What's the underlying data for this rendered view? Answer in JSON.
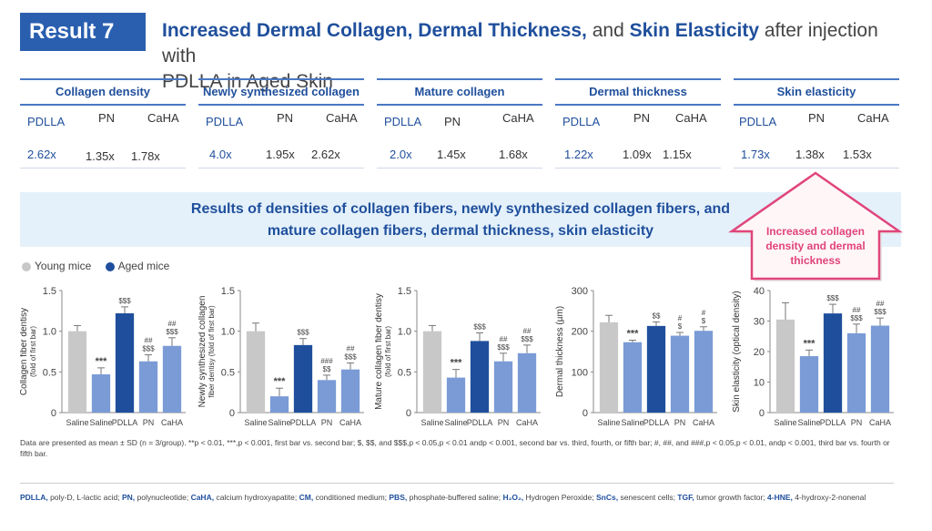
{
  "header": {
    "badge": "Result 7",
    "title_b1": "Increased Dermal Collagen,",
    "title_b2": "Dermal Thickness,",
    "title_t1": " and ",
    "title_b3": "Skin Elasticity",
    "title_t2": " after injection with",
    "title_line2": "PDLLA in Aged Skin"
  },
  "metrics": [
    {
      "title": "Collagen density",
      "labels": [
        "PDLLA",
        "PN",
        "CaHA"
      ],
      "values": [
        "2.62x",
        "1.35x",
        "1.78x"
      ]
    },
    {
      "title": "Newly synthesized collagen",
      "labels": [
        "PDLLA",
        "PN",
        "CaHA"
      ],
      "values": [
        "4.0x",
        "1.95x",
        "2.62x"
      ]
    },
    {
      "title": "Mature collagen",
      "labels": [
        "PDLLA",
        "PN",
        "CaHA"
      ],
      "values": [
        "2.0x",
        "1.45x",
        "1.68x"
      ]
    },
    {
      "title": "Dermal thickness",
      "labels": [
        "PDLLA",
        "PN",
        "CaHA"
      ],
      "values": [
        "1.22x",
        "1.09x",
        "1.15x"
      ]
    },
    {
      "title": "Skin elasticity",
      "labels": [
        "PDLLA",
        "PN",
        "CaHA"
      ],
      "values": [
        "1.73x",
        "1.38x",
        "1.53x"
      ]
    }
  ],
  "banner": {
    "line1": "Results of densities of collagen fibers, newly synthesized collagen fibers, and",
    "line2": "mature collagen fibers, dermal thickness, skin elasticity"
  },
  "callout": {
    "text_lines": [
      "Increased collagen",
      "density and dermal",
      "thickness"
    ]
  },
  "legend": {
    "young": "Young mice",
    "aged": "Aged mice"
  },
  "colors": {
    "young": "#c8c8c8",
    "aged": "#7a9bd6",
    "pdlla": "#1f4f9c",
    "accent": "#e0457b"
  },
  "chart_data": [
    {
      "type": "bar",
      "ylabel_lines": [
        "Collagen fiber dentisy",
        "(fold of first bar)"
      ],
      "categories": [
        "Saline",
        "Saline",
        "PDLLA",
        "PN",
        "CaHA"
      ],
      "values": [
        1.0,
        0.47,
        1.22,
        0.63,
        0.82
      ],
      "errors": [
        0.07,
        0.08,
        0.08,
        0.08,
        0.1
      ],
      "annotations": [
        "",
        "***",
        "$$$",
        "##\n$$$",
        "##\n$$$"
      ],
      "yticks": [
        "0",
        "0.5",
        "1.0",
        "1.5"
      ],
      "ylim": [
        0,
        1.5
      ]
    },
    {
      "type": "bar",
      "ylabel_lines": [
        "Newly synthesized collagen",
        "fiber dentisy (fold of first bar)"
      ],
      "categories": [
        "Saline",
        "Saline",
        "PDLLA",
        "PN",
        "CaHA"
      ],
      "values": [
        1.0,
        0.2,
        0.83,
        0.4,
        0.53
      ],
      "errors": [
        0.1,
        0.1,
        0.08,
        0.06,
        0.08
      ],
      "annotations": [
        "",
        "***",
        "$$$",
        "###\n$$",
        "##\n$$$"
      ],
      "yticks": [
        "0",
        "0.5",
        "1.0",
        "1.5"
      ],
      "ylim": [
        0,
        1.5
      ]
    },
    {
      "type": "bar",
      "ylabel_lines": [
        "Mature collagen fiber dentisy",
        "(fold of first bar)"
      ],
      "categories": [
        "Saline",
        "Saline",
        "PDLLA",
        "PN",
        "CaHA"
      ],
      "values": [
        1.0,
        0.43,
        0.88,
        0.63,
        0.73
      ],
      "errors": [
        0.07,
        0.1,
        0.1,
        0.1,
        0.1
      ],
      "annotations": [
        "",
        "***",
        "$$$",
        "##\n$$$",
        "##\n$$$"
      ],
      "yticks": [
        "0",
        "0.5",
        "1.0",
        "1.5"
      ],
      "ylim": [
        0,
        1.5
      ]
    },
    {
      "type": "bar",
      "ylabel_lines": [
        "Dermal thickness (µm)"
      ],
      "categories": [
        "Saline",
        "Saline",
        "PDLLA",
        "PN",
        "CaHA"
      ],
      "values": [
        222,
        173,
        213,
        189,
        201
      ],
      "errors": [
        17,
        5,
        10,
        8,
        10
      ],
      "annotations": [
        "",
        "***",
        "$$",
        "#\n$",
        "#\n$"
      ],
      "yticks": [
        "0",
        "100",
        "200",
        "300"
      ],
      "ylim": [
        0,
        300
      ]
    },
    {
      "type": "bar",
      "ylabel_lines": [
        "Skin elasticity (optical density)"
      ],
      "categories": [
        "Saline",
        "Saline",
        "PDLLA",
        "PN",
        "CaHA"
      ],
      "values": [
        30.5,
        18.5,
        32.5,
        26.0,
        28.5
      ],
      "errors": [
        5.5,
        2,
        3,
        3,
        2.5
      ],
      "annotations": [
        "",
        "***",
        "$$$",
        "##\n$$$",
        "##\n$$$"
      ],
      "yticks": [
        "0",
        "10",
        "20",
        "30",
        "40"
      ],
      "ylim": [
        0,
        40
      ]
    }
  ],
  "footnote": "Data are presented as mean ± SD (n = 3/group). **p < 0.01, ***,p < 0.001, first bar vs. second bar; $, $$, and $$$,p < 0.05,p < 0.01 andp < 0.001, second bar vs. third, fourth, or fifth bar; #, ##, and ###,p < 0.05,p < 0.01, andp < 0.001, third bar vs. fourth or fifth bar.",
  "abbreviations": [
    {
      "abbr": "PDLLA,",
      "text": " poly-D, L-lactic acid; "
    },
    {
      "abbr": "PN,",
      "text": " polynucleotide; "
    },
    {
      "abbr": "CaHA,",
      "text": " calcium hydroxyapatite; "
    },
    {
      "abbr": "CM,",
      "text": " conditioned medium; "
    },
    {
      "abbr": "PBS,",
      "text": " phosphate-buffered saline; "
    },
    {
      "abbr": "H₂O₂,",
      "text": " Hydrogen Peroxide; "
    },
    {
      "abbr": "SnCs,",
      "text": " senescent cells; "
    },
    {
      "abbr": "TGF,",
      "text": " tumor growth factor; "
    },
    {
      "abbr": "4-HNE,",
      "text": " 4-hydroxy-2-nonenal"
    }
  ]
}
